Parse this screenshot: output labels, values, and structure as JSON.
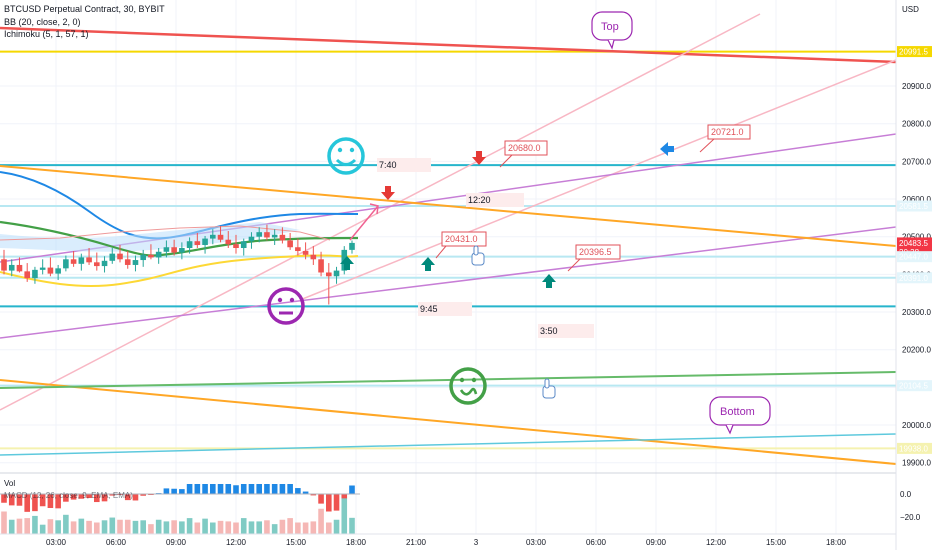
{
  "chart_data": {
    "type": "candlestick",
    "symbol_line": "BTCUSD Perpetual Contract, 30, BYBIT",
    "indicators": [
      "BB (20, close, 2, 0)",
      "Ichimoku (5, 1, 57, 1)"
    ],
    "currency": "USD",
    "ylim": [
      19870,
      21070
    ],
    "y_ticks": [
      19900,
      20000,
      20100,
      20200,
      20300,
      20400,
      20500,
      20600,
      20700,
      20800,
      20900
    ],
    "y_tick_labels": [
      "19900.0",
      "20000.0",
      "20100.0",
      "20200.0",
      "20300.0",
      "20400.0",
      "20500.0",
      "20600.0",
      "20700.0",
      "20800.0",
      "20900.0"
    ],
    "x_ticks": [
      "03:00",
      "06:00",
      "09:00",
      "12:00",
      "15:00",
      "18:00",
      "21:00",
      "3",
      "03:00",
      "06:00",
      "09:00",
      "12:00",
      "15:00",
      "18:00"
    ],
    "price_tags": [
      {
        "value": 20991.5,
        "label": "20991.5",
        "bg": "#f5d800",
        "fg": "#131722"
      },
      {
        "value": 20581.5,
        "label": "20581.5",
        "bg": "#e3f5fb",
        "fg": "#131722"
      },
      {
        "value": 20483.5,
        "label": "20483.5",
        "sub": "20:38",
        "bg": "#f23645",
        "fg": "#ffffff"
      },
      {
        "value": 20447.0,
        "label": "20447.0",
        "bg": "#e3f5fb",
        "fg": "#131722"
      },
      {
        "value": 20391.0,
        "label": "20391.0",
        "bg": "#e3f5fb",
        "fg": "#131722"
      },
      {
        "value": 20104.5,
        "label": "20104.5",
        "bg": "#e3f5fb",
        "fg": "#131722"
      },
      {
        "value": 19938.0,
        "label": "19938.0",
        "bg": "#f5f2b0",
        "fg": "#131722"
      }
    ],
    "horizontal_levels": [
      {
        "value": 20991.5,
        "color": "#f5d800"
      },
      {
        "value": 20690.0,
        "color": "#26b5cc"
      },
      {
        "value": 20581.5,
        "color": "#b8e8f2"
      },
      {
        "value": 20447.0,
        "color": "#b8e8f2"
      },
      {
        "value": 20391.0,
        "color": "#b8e8f2"
      },
      {
        "value": 20315.0,
        "color": "#26b5cc"
      },
      {
        "value": 20104.5,
        "color": "#b8e8f2"
      },
      {
        "value": 19938.0,
        "color": "#f5f2b0"
      }
    ],
    "price_annotations": [
      "20680.0",
      "20721.0",
      "20431.0",
      "20396.5"
    ],
    "time_notes": [
      "7:40",
      "12:20",
      "9:45",
      "3:50"
    ],
    "bubbles": [
      "Top",
      "Bottom"
    ],
    "candles": [
      {
        "o": 20440,
        "h": 20465,
        "l": 20400,
        "c": 20410
      },
      {
        "o": 20410,
        "h": 20440,
        "l": 20395,
        "c": 20425
      },
      {
        "o": 20425,
        "h": 20445,
        "l": 20405,
        "c": 20408
      },
      {
        "o": 20408,
        "h": 20430,
        "l": 20380,
        "c": 20390
      },
      {
        "o": 20390,
        "h": 20420,
        "l": 20375,
        "c": 20412
      },
      {
        "o": 20412,
        "h": 20440,
        "l": 20400,
        "c": 20418
      },
      {
        "o": 20418,
        "h": 20445,
        "l": 20395,
        "c": 20402
      },
      {
        "o": 20402,
        "h": 20425,
        "l": 20385,
        "c": 20416
      },
      {
        "o": 20416,
        "h": 20450,
        "l": 20408,
        "c": 20440
      },
      {
        "o": 20440,
        "h": 20462,
        "l": 20420,
        "c": 20428
      },
      {
        "o": 20428,
        "h": 20455,
        "l": 20410,
        "c": 20445
      },
      {
        "o": 20445,
        "h": 20470,
        "l": 20425,
        "c": 20432
      },
      {
        "o": 20432,
        "h": 20458,
        "l": 20410,
        "c": 20422
      },
      {
        "o": 20422,
        "h": 20448,
        "l": 20405,
        "c": 20436
      },
      {
        "o": 20436,
        "h": 20470,
        "l": 20428,
        "c": 20455
      },
      {
        "o": 20455,
        "h": 20478,
        "l": 20432,
        "c": 20440
      },
      {
        "o": 20440,
        "h": 20462,
        "l": 20415,
        "c": 20425
      },
      {
        "o": 20425,
        "h": 20450,
        "l": 20408,
        "c": 20438
      },
      {
        "o": 20438,
        "h": 20465,
        "l": 20420,
        "c": 20452
      },
      {
        "o": 20452,
        "h": 20480,
        "l": 20440,
        "c": 20445
      },
      {
        "o": 20445,
        "h": 20470,
        "l": 20428,
        "c": 20460
      },
      {
        "o": 20460,
        "h": 20490,
        "l": 20445,
        "c": 20472
      },
      {
        "o": 20472,
        "h": 20492,
        "l": 20450,
        "c": 20458
      },
      {
        "o": 20458,
        "h": 20485,
        "l": 20440,
        "c": 20470
      },
      {
        "o": 20470,
        "h": 20498,
        "l": 20455,
        "c": 20488
      },
      {
        "o": 20488,
        "h": 20510,
        "l": 20470,
        "c": 20478
      },
      {
        "o": 20478,
        "h": 20502,
        "l": 20455,
        "c": 20495
      },
      {
        "o": 20495,
        "h": 20520,
        "l": 20480,
        "c": 20505
      },
      {
        "o": 20505,
        "h": 20528,
        "l": 20485,
        "c": 20492
      },
      {
        "o": 20492,
        "h": 20515,
        "l": 20470,
        "c": 20480
      },
      {
        "o": 20480,
        "h": 20505,
        "l": 20455,
        "c": 20470
      },
      {
        "o": 20470,
        "h": 20495,
        "l": 20450,
        "c": 20488
      },
      {
        "o": 20488,
        "h": 20512,
        "l": 20468,
        "c": 20500
      },
      {
        "o": 20500,
        "h": 20525,
        "l": 20485,
        "c": 20512
      },
      {
        "o": 20512,
        "h": 20532,
        "l": 20490,
        "c": 20498
      },
      {
        "o": 20498,
        "h": 20520,
        "l": 20478,
        "c": 20505
      },
      {
        "o": 20505,
        "h": 20525,
        "l": 20482,
        "c": 20490
      },
      {
        "o": 20490,
        "h": 20510,
        "l": 20465,
        "c": 20472
      },
      {
        "o": 20472,
        "h": 20495,
        "l": 20450,
        "c": 20462
      },
      {
        "o": 20462,
        "h": 20485,
        "l": 20440,
        "c": 20452
      },
      {
        "o": 20452,
        "h": 20475,
        "l": 20425,
        "c": 20440
      },
      {
        "o": 20440,
        "h": 20460,
        "l": 20395,
        "c": 20405
      },
      {
        "o": 20405,
        "h": 20430,
        "l": 20320,
        "c": 20395
      },
      {
        "o": 20395,
        "h": 20420,
        "l": 20375,
        "c": 20410
      },
      {
        "o": 20410,
        "h": 20475,
        "l": 20400,
        "c": 20465
      },
      {
        "o": 20465,
        "h": 20490,
        "l": 20455,
        "c": 20483.5
      }
    ],
    "macd_panel": {
      "labels": [
        "Vol",
        "MACD (12, 26, close, 9, EMA, EMA)"
      ],
      "y_tick_labels": [
        "0.0",
        "−20.0"
      ]
    }
  }
}
